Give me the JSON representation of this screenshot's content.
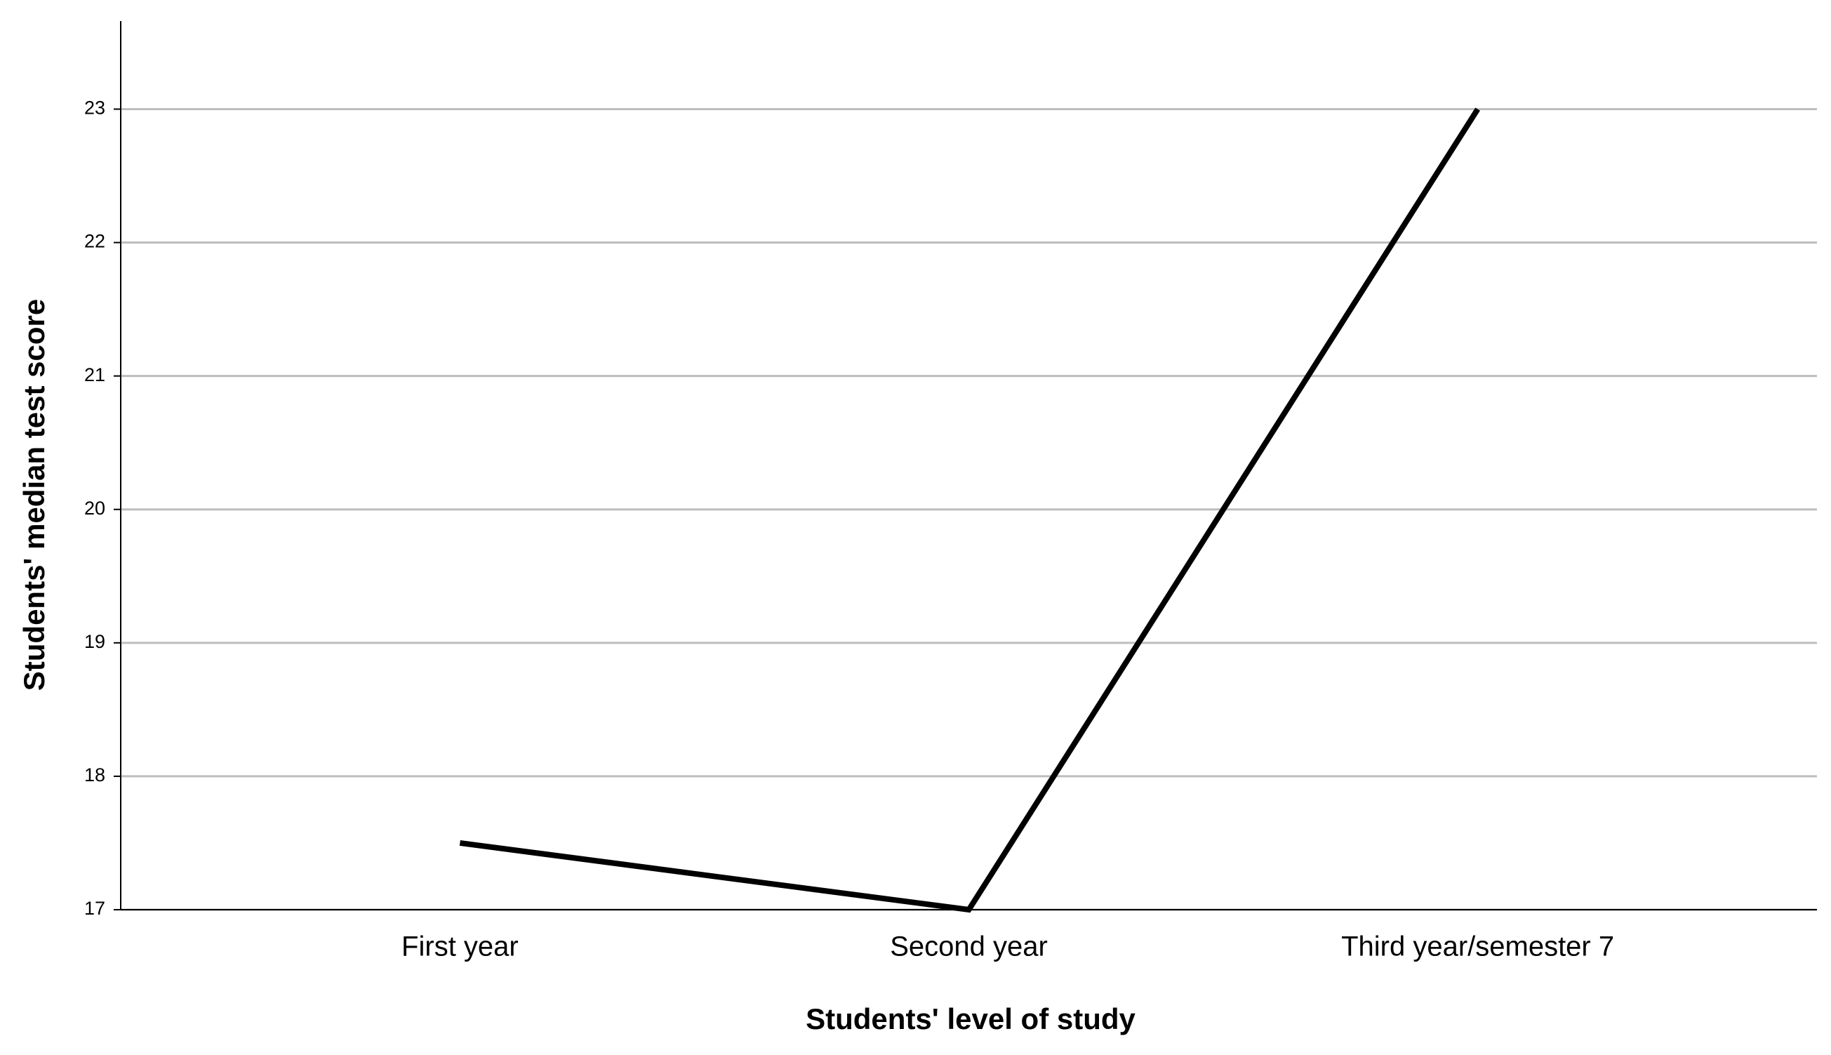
{
  "chart_data": {
    "type": "line",
    "x_label": "Students' level of study",
    "y_label": "Students' median test score",
    "categories": [
      "First year",
      "Second year",
      "Third year/semester 7"
    ],
    "values": [
      17.5,
      17,
      23
    ],
    "color": "#000000",
    "ylim": [
      17,
      23.66
    ],
    "yticks": [
      17,
      18,
      19,
      20,
      21,
      22,
      23
    ],
    "grid": true
  }
}
